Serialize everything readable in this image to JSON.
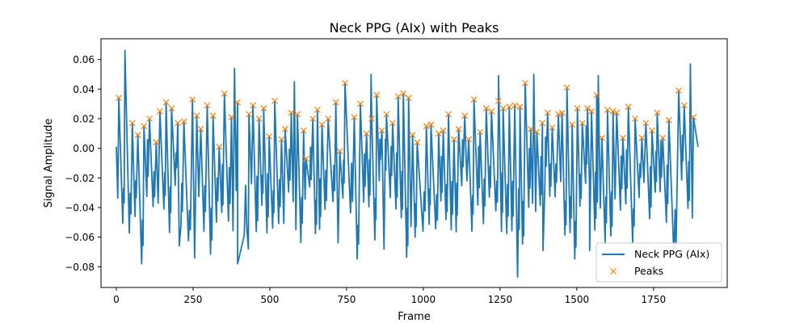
{
  "chart_data": {
    "type": "line",
    "title": "Neck PPG (AIx) with Peaks",
    "xlabel": "Frame",
    "ylabel": "Signal Amplitude",
    "xlim": [
      -50,
      1990
    ],
    "ylim": [
      -0.094,
      0.074
    ],
    "xticks": [
      0,
      250,
      500,
      750,
      1000,
      1250,
      1500,
      1750
    ],
    "yticks": [
      -0.08,
      -0.06,
      -0.04,
      -0.02,
      0.0,
      0.02,
      0.04,
      0.06
    ],
    "ytick_labels": [
      "−0.08",
      "−0.06",
      "−0.04",
      "−0.02",
      "0.00",
      "0.02",
      "0.04",
      "0.06"
    ],
    "grid": false,
    "legend_position": "lower right",
    "colors": {
      "signal": "#1f77b4",
      "peaks": "#ff7f0e"
    },
    "series": [
      {
        "name": "Neck PPG (AIx)",
        "style": "line",
        "x_start": 0,
        "x_end": 1895,
        "approx_period_frames": 25
      },
      {
        "name": "Peaks",
        "style": "marker",
        "marker": "x",
        "points": [
          [
            8,
            0.034
          ],
          [
            52,
            0.017
          ],
          [
            70,
            0.009
          ],
          [
            90,
            0.015
          ],
          [
            108,
            0.02
          ],
          [
            130,
            0.004
          ],
          [
            142,
            0.025
          ],
          [
            162,
            0.031
          ],
          [
            180,
            0.027
          ],
          [
            200,
            0.017
          ],
          [
            220,
            0.018
          ],
          [
            248,
            0.033
          ],
          [
            262,
            0.022
          ],
          [
            275,
            0.013
          ],
          [
            296,
            0.029
          ],
          [
            315,
            0.022
          ],
          [
            335,
            0.001
          ],
          [
            352,
            0.037
          ],
          [
            375,
            0.021
          ],
          [
            395,
            0.031
          ],
          [
            432,
            0.023
          ],
          [
            445,
            0.029
          ],
          [
            465,
            0.02
          ],
          [
            480,
            0.027
          ],
          [
            498,
            0.008
          ],
          [
            516,
            0.032
          ],
          [
            538,
            0.006
          ],
          [
            550,
            0.013
          ],
          [
            570,
            0.024
          ],
          [
            590,
            0.023
          ],
          [
            610,
            0.012
          ],
          [
            618,
            -0.007
          ],
          [
            640,
            0.02
          ],
          [
            655,
            0.026
          ],
          [
            670,
            0.016
          ],
          [
            690,
            0.02
          ],
          [
            715,
            0.031
          ],
          [
            728,
            -0.002
          ],
          [
            745,
            0.044
          ],
          [
            775,
            0.021
          ],
          [
            795,
            0.03
          ],
          [
            815,
            0.01
          ],
          [
            832,
            0.02
          ],
          [
            848,
            0.036
          ],
          [
            865,
            0.012
          ],
          [
            880,
            0.023
          ],
          [
            900,
            0.017
          ],
          [
            918,
            0.035
          ],
          [
            935,
            0.037
          ],
          [
            952,
            0.034
          ],
          [
            965,
            0.009
          ],
          [
            980,
            0.004
          ],
          [
            1010,
            0.015
          ],
          [
            1025,
            0.016
          ],
          [
            1050,
            0.01
          ],
          [
            1065,
            0.012
          ],
          [
            1082,
            0.023
          ],
          [
            1100,
            0.006
          ],
          [
            1115,
            0.013
          ],
          [
            1135,
            0.022
          ],
          [
            1148,
            0.006
          ],
          [
            1165,
            0.033
          ],
          [
            1185,
            0.011
          ],
          [
            1205,
            0.027
          ],
          [
            1222,
            0.025
          ],
          [
            1245,
            0.032
          ],
          [
            1260,
            0.027
          ],
          [
            1280,
            0.028
          ],
          [
            1298,
            0.029
          ],
          [
            1315,
            0.028
          ],
          [
            1332,
            0.044
          ],
          [
            1350,
            0.013
          ],
          [
            1370,
            0.011
          ],
          [
            1388,
            0.017
          ],
          [
            1405,
            0.024
          ],
          [
            1420,
            0.014
          ],
          [
            1440,
            0.023
          ],
          [
            1452,
            0.024
          ],
          [
            1468,
            0.041
          ],
          [
            1485,
            0.016
          ],
          [
            1502,
            0.027
          ],
          [
            1518,
            0.017
          ],
          [
            1535,
            0.027
          ],
          [
            1548,
            0.025
          ],
          [
            1565,
            0.036
          ],
          [
            1582,
            0.007
          ],
          [
            1600,
            0.026
          ],
          [
            1618,
            0.025
          ],
          [
            1630,
            0.024
          ],
          [
            1650,
            0.007
          ],
          [
            1668,
            0.028
          ],
          [
            1690,
            0.02
          ],
          [
            1712,
            0.007
          ],
          [
            1725,
            0.017
          ],
          [
            1745,
            0.012
          ],
          [
            1762,
            0.024
          ],
          [
            1780,
            0.007
          ],
          [
            1800,
            0.019
          ],
          [
            1832,
            0.039
          ],
          [
            1850,
            0.029
          ],
          [
            1880,
            0.021
          ]
        ]
      }
    ]
  }
}
